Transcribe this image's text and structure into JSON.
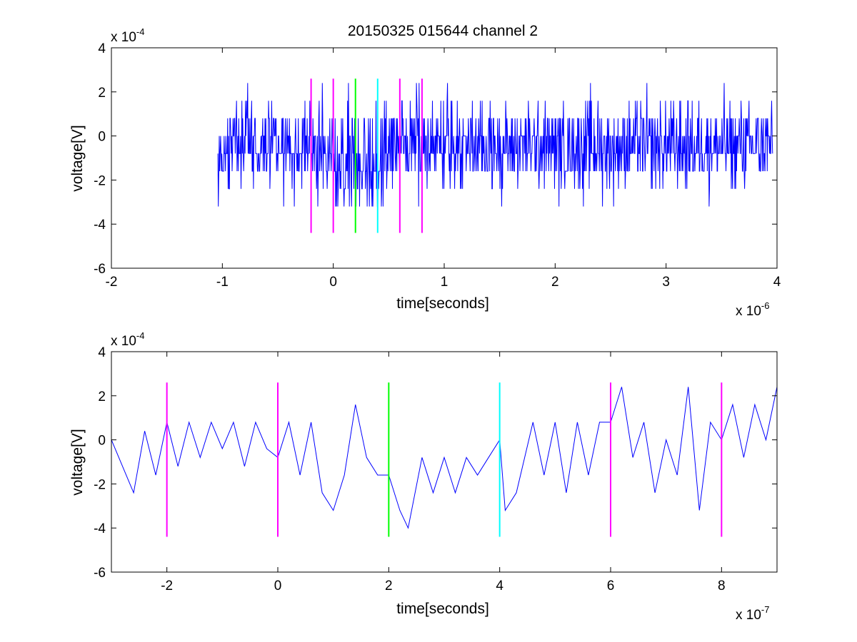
{
  "title": "20150325 015644 channel 2",
  "chart_data": [
    {
      "type": "line",
      "id": "top",
      "title": "20150325 015644 channel 2",
      "xlabel": "time[seconds]",
      "ylabel": "voltage[V]",
      "x_exponent": "x 10",
      "x_exponent_power": "-6",
      "y_exponent": "x 10",
      "y_exponent_power": "-4",
      "xlim": [
        -2,
        4
      ],
      "ylim": [
        -6,
        4
      ],
      "xticks": [
        -2,
        -1,
        0,
        1,
        2,
        3,
        4
      ],
      "xtick_labels": [
        "-2",
        "-1",
        "0",
        "1",
        "2",
        "3",
        "4"
      ],
      "yticks": [
        -6,
        -4,
        -2,
        0,
        2,
        4
      ],
      "ytick_labels": [
        "-6",
        "-4",
        "-2",
        "0",
        "2",
        "4"
      ],
      "grid": false,
      "signal": {
        "color": "#0000ff",
        "x_start": -1.04,
        "x_end": 3.96,
        "samples": 1250,
        "levels": [
          -3.2,
          -2.4,
          -1.6,
          -0.8,
          0,
          0.8,
          1.6,
          2.4
        ]
      },
      "markers": [
        {
          "x": -0.2,
          "color": "#ff00ff",
          "y_from": -4.4,
          "y_to": 2.6
        },
        {
          "x": 0.0,
          "color": "#ff00ff",
          "y_from": -4.4,
          "y_to": 2.6
        },
        {
          "x": 0.2,
          "color": "#00ff00",
          "y_from": -4.4,
          "y_to": 2.6
        },
        {
          "x": 0.4,
          "color": "#00ffff",
          "y_from": -4.4,
          "y_to": 2.6
        },
        {
          "x": 0.6,
          "color": "#ff00ff",
          "y_from": -4.4,
          "y_to": 2.6
        },
        {
          "x": 0.8,
          "color": "#ff00ff",
          "y_from": -4.4,
          "y_to": 2.6
        }
      ]
    },
    {
      "type": "line",
      "id": "bottom",
      "title": "",
      "xlabel": "time[seconds]",
      "ylabel": "voltage[V]",
      "x_exponent": "x 10",
      "x_exponent_power": "-7",
      "y_exponent": "x 10",
      "y_exponent_power": "-4",
      "xlim": [
        -3,
        9
      ],
      "ylim": [
        -6,
        4
      ],
      "xticks": [
        -2,
        0,
        2,
        4,
        6,
        8
      ],
      "xtick_labels": [
        "-2",
        "0",
        "2",
        "4",
        "6",
        "8"
      ],
      "yticks": [
        -6,
        -4,
        -2,
        0,
        2,
        4
      ],
      "ytick_labels": [
        "-6",
        "-4",
        "-2",
        "0",
        "2",
        "4"
      ],
      "grid": false,
      "signal": {
        "color": "#0000ff",
        "x": [
          -3.0,
          -2.6,
          -2.4,
          -2.2,
          -2.0,
          -1.8,
          -1.6,
          -1.4,
          -1.2,
          -1.0,
          -0.8,
          -0.6,
          -0.4,
          -0.2,
          0.0,
          0.2,
          0.4,
          0.6,
          0.8,
          1.0,
          1.2,
          1.4,
          1.6,
          1.8,
          2.0,
          2.2,
          2.35,
          2.6,
          2.8,
          3.0,
          3.2,
          3.4,
          3.6,
          3.8,
          4.0,
          4.1,
          4.3,
          4.6,
          4.8,
          5.0,
          5.2,
          5.4,
          5.6,
          5.8,
          6.0,
          6.2,
          6.4,
          6.6,
          6.8,
          7.0,
          7.2,
          7.4,
          7.6,
          7.8,
          8.0,
          8.2,
          8.4,
          8.6,
          8.8,
          9.0
        ],
        "y": [
          0,
          -2.4,
          0.4,
          -1.6,
          0.8,
          -1.2,
          0.8,
          -0.8,
          0.8,
          -0.4,
          0.8,
          -1.2,
          0.8,
          -0.4,
          -0.8,
          0.8,
          -1.6,
          0.8,
          -2.4,
          -3.2,
          -1.6,
          1.6,
          -0.8,
          -1.6,
          -1.6,
          -3.2,
          -4.0,
          -0.8,
          -2.4,
          -0.8,
          -2.4,
          -0.8,
          -1.6,
          -0.8,
          0,
          -3.2,
          -2.4,
          0.8,
          -1.6,
          0.8,
          -2.4,
          0.8,
          -1.6,
          0.8,
          0.8,
          2.4,
          -0.8,
          0.8,
          -2.4,
          0,
          -1.6,
          2.4,
          -3.2,
          0.8,
          0.0,
          1.6,
          -0.8,
          1.6,
          0,
          2.4
        ]
      },
      "markers": [
        {
          "x": -2,
          "color": "#ff00ff",
          "y_from": -4.4,
          "y_to": 2.6
        },
        {
          "x": 0,
          "color": "#ff00ff",
          "y_from": -4.4,
          "y_to": 2.6
        },
        {
          "x": 2,
          "color": "#00ff00",
          "y_from": -4.4,
          "y_to": 2.6
        },
        {
          "x": 4,
          "color": "#00ffff",
          "y_from": -4.4,
          "y_to": 2.6
        },
        {
          "x": 6,
          "color": "#ff00ff",
          "y_from": -4.4,
          "y_to": 2.6
        },
        {
          "x": 8,
          "color": "#ff00ff",
          "y_from": -4.4,
          "y_to": 2.6
        }
      ]
    }
  ]
}
